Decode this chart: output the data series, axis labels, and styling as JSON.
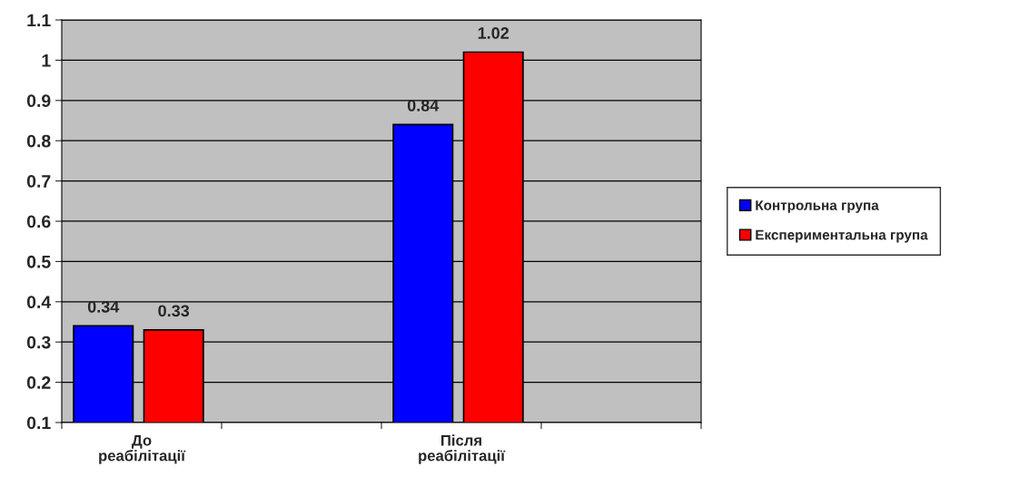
{
  "chart_data": {
    "type": "bar",
    "categories": [
      "До\nреабілітації",
      null,
      "Після\nреабілітації",
      null
    ],
    "series": [
      {
        "name": "Контрольна група",
        "color": "#0000ff",
        "values": [
          0.34,
          null,
          0.84,
          null
        ]
      },
      {
        "name": "Експериментальна група",
        "color": "#ff0000",
        "values": [
          0.33,
          null,
          1.02,
          null
        ]
      }
    ],
    "ylim": [
      0.1,
      1.1
    ],
    "yticks": [
      0.1,
      0.2,
      0.3,
      0.4,
      0.5,
      0.6,
      0.7,
      0.8,
      0.9,
      1,
      1.1
    ],
    "grid": "y",
    "legend": "right",
    "data_labels": true
  }
}
